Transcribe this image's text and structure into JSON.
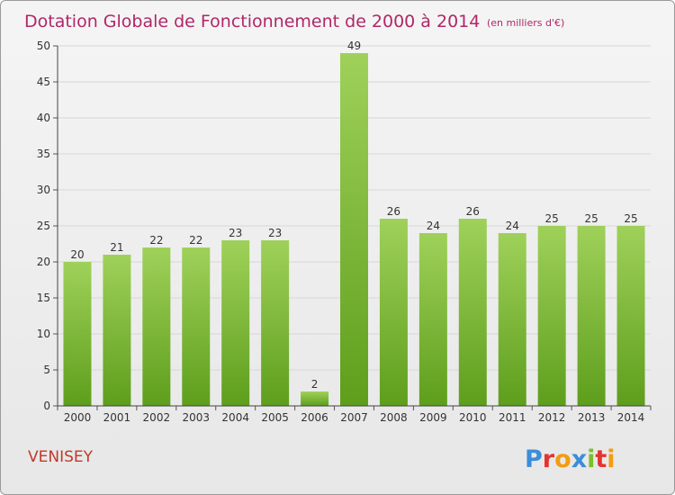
{
  "chart_data": {
    "type": "bar",
    "title": "Dotation Globale de Fonctionnement de 2000 à 2014",
    "subtitle": "(en milliers d'€)",
    "categories": [
      "2000",
      "2001",
      "2002",
      "2003",
      "2004",
      "2005",
      "2006",
      "2007",
      "2008",
      "2009",
      "2010",
      "2011",
      "2012",
      "2013",
      "2014"
    ],
    "values": [
      20,
      21,
      22,
      22,
      23,
      23,
      2,
      49,
      26,
      24,
      26,
      24,
      25,
      25,
      25
    ],
    "ylim": [
      0,
      50
    ],
    "yticks": [
      0,
      5,
      10,
      15,
      20,
      25,
      30,
      35,
      40,
      45,
      50
    ],
    "grid": true,
    "data_labels": true,
    "bar_color_top": "#9fd15a",
    "bar_color_bottom": "#5e9e1c"
  },
  "footer": {
    "town": "VENISEY",
    "brand": "Proxiti"
  },
  "colors": {
    "title": "#b02768",
    "town": "#c0392b",
    "grid": "#d7d7d7"
  }
}
